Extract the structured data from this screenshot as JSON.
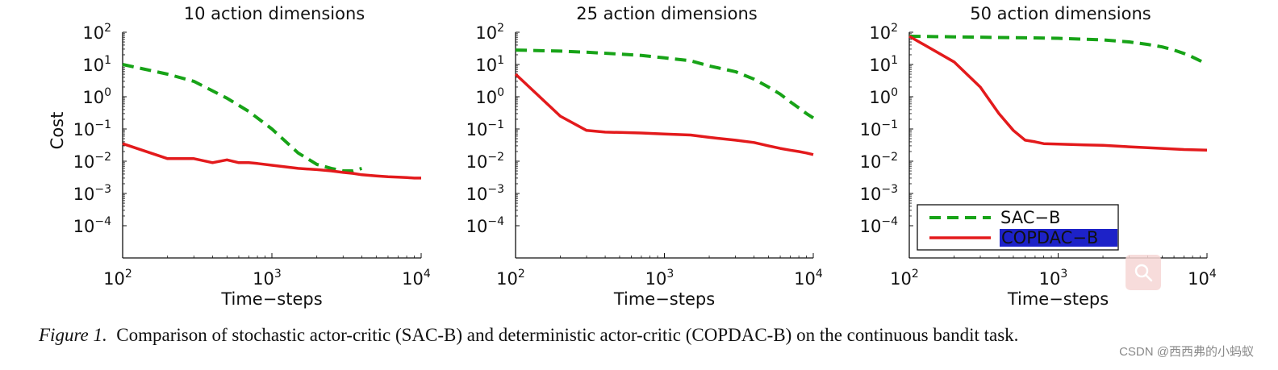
{
  "chart_data": [
    {
      "type": "line",
      "title": "10 action dimensions",
      "xlabel": "Time−steps",
      "ylabel": "Cost",
      "xscale": "log",
      "yscale": "log",
      "xlim": [
        100,
        10000
      ],
      "ylim": [
        1e-05,
        100
      ],
      "x_ticks": [
        {
          "base": "10",
          "exp": "2"
        },
        {
          "base": "10",
          "exp": "3"
        },
        {
          "base": "10",
          "exp": "4"
        }
      ],
      "y_ticks": [
        {
          "base": "10",
          "exp": "2"
        },
        {
          "base": "10",
          "exp": "1"
        },
        {
          "base": "10",
          "exp": "0"
        },
        {
          "base": "10",
          "exp": "−1"
        },
        {
          "base": "10",
          "exp": "−2"
        },
        {
          "base": "10",
          "exp": "−3"
        },
        {
          "base": "10",
          "exp": "−4"
        }
      ],
      "series": [
        {
          "name": "SAC-B",
          "style": "dashed",
          "color": "#17a317",
          "x": [
            100,
            200,
            300,
            500,
            700,
            1000,
            1500,
            2000,
            2500,
            3000,
            3500,
            4000
          ],
          "y": [
            10,
            5,
            3,
            0.9,
            0.35,
            0.1,
            0.018,
            0.008,
            0.006,
            0.005,
            0.005,
            0.006
          ]
        },
        {
          "name": "COPDAC-B",
          "style": "solid",
          "color": "#e31a1c",
          "x": [
            100,
            200,
            300,
            400,
            500,
            600,
            700,
            800,
            1000,
            1500,
            2000,
            2500,
            3000,
            3500,
            4000,
            5000,
            6000,
            7000,
            8000,
            9000,
            10000
          ],
          "y": [
            0.035,
            0.012,
            0.012,
            0.009,
            0.011,
            0.009,
            0.009,
            0.0085,
            0.0075,
            0.006,
            0.0055,
            0.005,
            0.0045,
            0.0042,
            0.0038,
            0.0035,
            0.0033,
            0.0032,
            0.0031,
            0.003,
            0.003
          ]
        }
      ]
    },
    {
      "type": "line",
      "title": "25 action dimensions",
      "xlabel": "Time−steps",
      "ylabel": "",
      "xscale": "log",
      "yscale": "log",
      "xlim": [
        100,
        10000
      ],
      "ylim": [
        1e-05,
        100
      ],
      "x_ticks": [
        {
          "base": "10",
          "exp": "2"
        },
        {
          "base": "10",
          "exp": "3"
        },
        {
          "base": "10",
          "exp": "4"
        }
      ],
      "y_ticks": [
        {
          "base": "10",
          "exp": "2"
        },
        {
          "base": "10",
          "exp": "1"
        },
        {
          "base": "10",
          "exp": "0"
        },
        {
          "base": "10",
          "exp": "−1"
        },
        {
          "base": "10",
          "exp": "−2"
        },
        {
          "base": "10",
          "exp": "−3"
        },
        {
          "base": "10",
          "exp": "−4"
        }
      ],
      "series": [
        {
          "name": "SAC-B",
          "style": "dashed",
          "color": "#17a317",
          "x": [
            100,
            200,
            300,
            500,
            700,
            1000,
            1500,
            2000,
            3000,
            4000,
            5000,
            6000,
            7000,
            8000,
            9000,
            10000
          ],
          "y": [
            28,
            26,
            24,
            21,
            19,
            16,
            13,
            9,
            6,
            3.5,
            2,
            1.2,
            0.7,
            0.45,
            0.3,
            0.22
          ]
        },
        {
          "name": "COPDAC-B",
          "style": "solid",
          "color": "#e31a1c",
          "x": [
            100,
            200,
            300,
            400,
            500,
            700,
            1000,
            1500,
            2000,
            3000,
            4000,
            5000,
            6000,
            7000,
            8000,
            9000,
            10000
          ],
          "y": [
            5,
            0.25,
            0.09,
            0.08,
            0.078,
            0.075,
            0.07,
            0.065,
            0.055,
            0.045,
            0.038,
            0.03,
            0.025,
            0.022,
            0.02,
            0.018,
            0.016
          ]
        }
      ]
    },
    {
      "type": "line",
      "title": "50 action dimensions",
      "xlabel": "Time−steps",
      "ylabel": "",
      "xscale": "log",
      "yscale": "log",
      "xlim": [
        100,
        10000
      ],
      "ylim": [
        1e-05,
        100
      ],
      "x_ticks": [
        {
          "base": "10",
          "exp": "2"
        },
        {
          "base": "10",
          "exp": "3"
        },
        {
          "base": "10",
          "exp": "4"
        }
      ],
      "y_ticks": [
        {
          "base": "10",
          "exp": "2"
        },
        {
          "base": "10",
          "exp": "1"
        },
        {
          "base": "10",
          "exp": "0"
        },
        {
          "base": "10",
          "exp": "−1"
        },
        {
          "base": "10",
          "exp": "−2"
        },
        {
          "base": "10",
          "exp": "−3"
        },
        {
          "base": "10",
          "exp": "−4"
        }
      ],
      "legend": {
        "position": "bottom-left",
        "entries": [
          "SAC−B",
          "COPDAC−B"
        ]
      },
      "series": [
        {
          "name": "SAC-B",
          "style": "dashed",
          "color": "#17a317",
          "x": [
            100,
            200,
            500,
            1000,
            2000,
            3000,
            4000,
            5000,
            6000,
            7000,
            8000,
            9000,
            10000
          ],
          "y": [
            75,
            72,
            68,
            65,
            58,
            50,
            42,
            35,
            28,
            22,
            17,
            13,
            10
          ]
        },
        {
          "name": "COPDAC-B",
          "style": "solid",
          "color": "#e31a1c",
          "x": [
            100,
            200,
            300,
            400,
            500,
            600,
            700,
            800,
            1000,
            1500,
            2000,
            3000,
            5000,
            7000,
            10000
          ],
          "y": [
            75,
            12,
            2,
            0.3,
            0.09,
            0.045,
            0.04,
            0.035,
            0.034,
            0.032,
            0.031,
            0.028,
            0.025,
            0.023,
            0.022
          ]
        }
      ]
    }
  ],
  "caption": {
    "label": "Figure 1.",
    "text": "Comparison of stochastic actor-critic (SAC-B) and deterministic actor-critic (COPDAC-B) on the continuous bandit task."
  },
  "watermark": "CSDN @西西弗的小蚂蚁",
  "colors": {
    "sac": "#17a317",
    "copdac": "#e31a1c",
    "legend_highlight_bg": "#1d22c8",
    "legend_highlight_fg": "#f2e23a"
  }
}
